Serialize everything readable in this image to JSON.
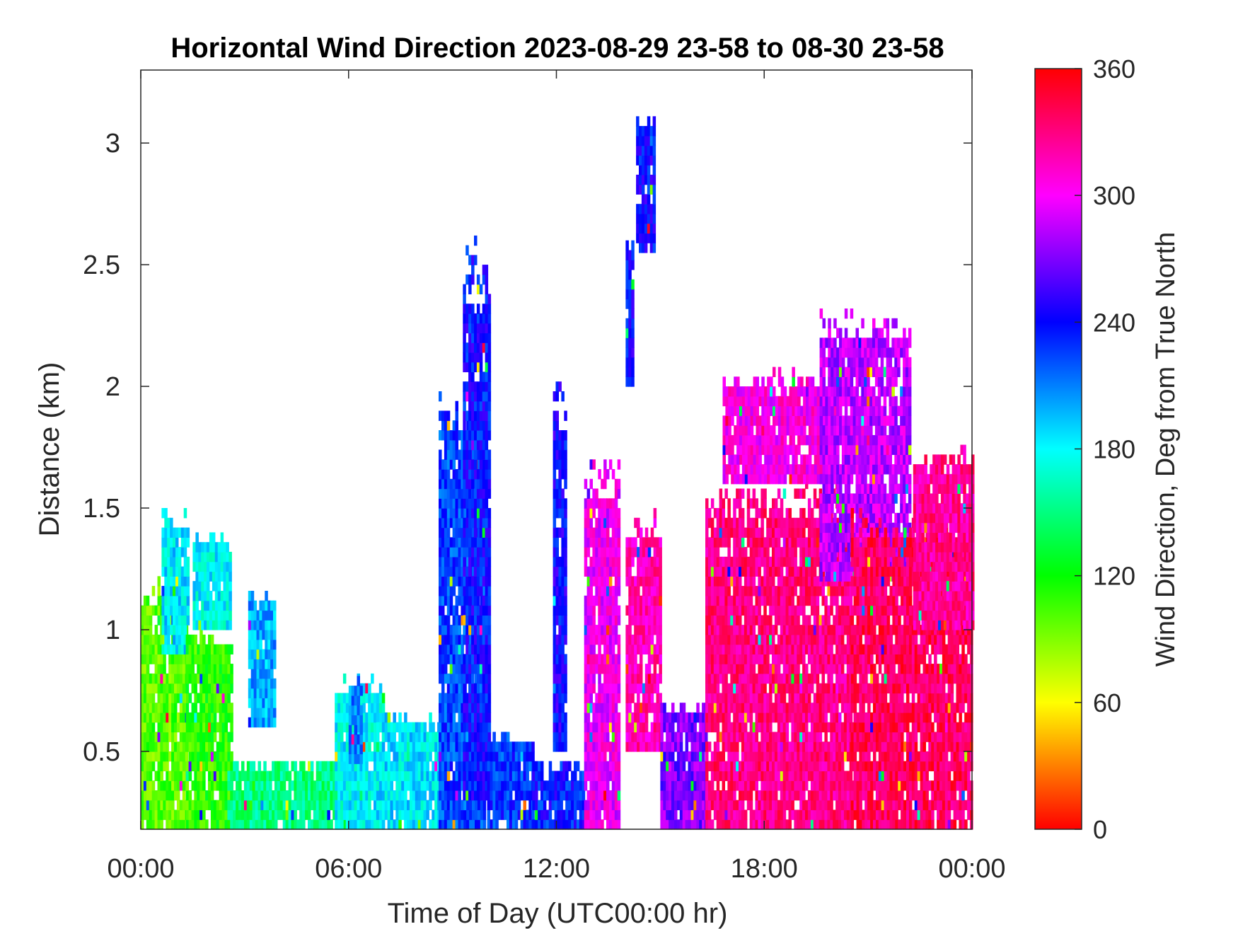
{
  "chart_data": {
    "type": "heatmap",
    "title": "Horizontal Wind Direction 2023-08-29 23-58 to 08-30 23-58",
    "xlabel": "Time of Day (UTC00:00 hr)",
    "ylabel": "Distance (km)",
    "xlim": [
      0,
      24
    ],
    "ylim": [
      0.18,
      3.3
    ],
    "xticks": [
      0,
      6,
      12,
      18,
      24
    ],
    "xtick_labels": [
      "00:00",
      "06:00",
      "12:00",
      "18:00",
      "00:00"
    ],
    "yticks": [
      0.5,
      1,
      1.5,
      2,
      2.5,
      3
    ],
    "ytick_labels": [
      "0.5",
      "1",
      "1.5",
      "2",
      "2.5",
      "3"
    ],
    "colorbar": {
      "label": "Wind Direction, Deg from True North",
      "range": [
        0,
        360
      ],
      "ticks": [
        0,
        60,
        120,
        180,
        240,
        300,
        360
      ],
      "tick_labels": [
        "0",
        "60",
        "120",
        "180",
        "240",
        "300",
        "360"
      ],
      "colormap": "hsv"
    },
    "regions": [
      {
        "t0": 0.0,
        "t1": 1.3,
        "h0": 0.18,
        "h1": 1.2,
        "dir": 100
      },
      {
        "t0": 0.6,
        "t1": 1.4,
        "h0": 0.9,
        "h1": 1.48,
        "dir": 185
      },
      {
        "t0": 1.3,
        "t1": 2.6,
        "h0": 0.18,
        "h1": 1.0,
        "dir": 110
      },
      {
        "t0": 1.5,
        "t1": 2.6,
        "h0": 1.0,
        "h1": 1.38,
        "dir": 180
      },
      {
        "t0": 3.1,
        "t1": 3.9,
        "h0": 0.6,
        "h1": 1.15,
        "dir": 200
      },
      {
        "t0": 2.5,
        "t1": 6.0,
        "h0": 0.18,
        "h1": 0.45,
        "dir": 150
      },
      {
        "t0": 5.6,
        "t1": 7.0,
        "h0": 0.18,
        "h1": 0.8,
        "dir": 180
      },
      {
        "t0": 6.0,
        "t1": 6.4,
        "h0": 0.45,
        "h1": 0.8,
        "dir": 210
      },
      {
        "t0": 6.8,
        "t1": 8.6,
        "h0": 0.18,
        "h1": 0.65,
        "dir": 185
      },
      {
        "t0": 8.6,
        "t1": 9.9,
        "h0": 0.18,
        "h1": 2.0,
        "dir": 225
      },
      {
        "t0": 9.3,
        "t1": 10.1,
        "h0": 0.3,
        "h1": 2.6,
        "dir": 238
      },
      {
        "t0": 10.0,
        "t1": 11.3,
        "h0": 0.18,
        "h1": 0.55,
        "dir": 228
      },
      {
        "t0": 11.3,
        "t1": 12.8,
        "h0": 0.18,
        "h1": 0.45,
        "dir": 235
      },
      {
        "t0": 11.9,
        "t1": 12.3,
        "h0": 0.5,
        "h1": 2.0,
        "dir": 242
      },
      {
        "t0": 12.8,
        "t1": 13.8,
        "h0": 0.18,
        "h1": 1.7,
        "dir": 300
      },
      {
        "t0": 14.0,
        "t1": 15.0,
        "h0": 0.5,
        "h1": 1.48,
        "dir": 318
      },
      {
        "t0": 14.3,
        "t1": 14.8,
        "h0": 2.55,
        "h1": 3.1,
        "dir": 240
      },
      {
        "t0": 14.0,
        "t1": 14.2,
        "h0": 2.0,
        "h1": 2.6,
        "dir": 240
      },
      {
        "t0": 15.0,
        "t1": 16.3,
        "h0": 0.18,
        "h1": 0.7,
        "dir": 270
      },
      {
        "t0": 16.3,
        "t1": 20.5,
        "h0": 0.18,
        "h1": 1.6,
        "dir": 330
      },
      {
        "t0": 16.8,
        "t1": 20.0,
        "h0": 1.6,
        "h1": 2.05,
        "dir": 305
      },
      {
        "t0": 19.6,
        "t1": 22.2,
        "h0": 1.2,
        "h1": 2.3,
        "dir": 285
      },
      {
        "t0": 20.5,
        "t1": 24.0,
        "h0": 0.18,
        "h1": 1.5,
        "dir": 338
      },
      {
        "t0": 22.3,
        "t1": 24.0,
        "h0": 1.0,
        "h1": 1.75,
        "dir": 325
      }
    ]
  }
}
